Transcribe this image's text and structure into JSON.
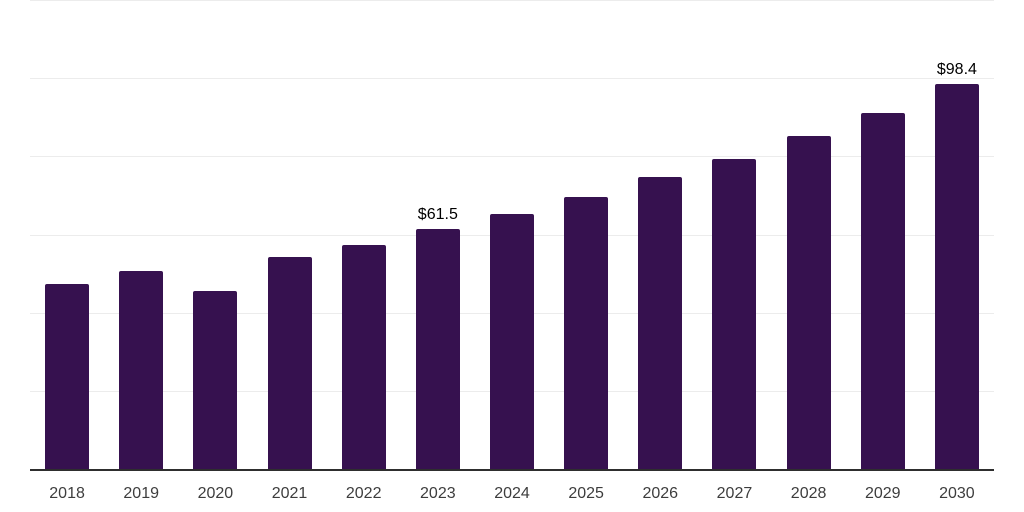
{
  "chart_data": {
    "type": "bar",
    "title": "",
    "xlabel": "",
    "ylabel": "",
    "categories": [
      "2018",
      "2019",
      "2020",
      "2021",
      "2022",
      "2023",
      "2024",
      "2025",
      "2026",
      "2027",
      "2028",
      "2029",
      "2030"
    ],
    "values": [
      47.4,
      50.6,
      45.5,
      54.2,
      57.3,
      61.5,
      65.3,
      69.7,
      74.6,
      79.4,
      85.1,
      91.0,
      98.4
    ],
    "bar_labels": [
      "",
      "",
      "",
      "",
      "",
      "$61.5",
      "",
      "",
      "",
      "",
      "",
      "",
      "$98.4"
    ],
    "ylim": [
      0,
      120
    ],
    "grid_interval": 20,
    "grid": "horizontal-only",
    "legend": "none",
    "y_tick_labels_visible": false
  },
  "colors": {
    "bar_fill": "#36114f",
    "axis_line": "#2e2e2e",
    "gridline": "#ececec",
    "x_tick_label": "#3d3d3d",
    "bar_value_label": "#000000",
    "background": "#ffffff"
  }
}
